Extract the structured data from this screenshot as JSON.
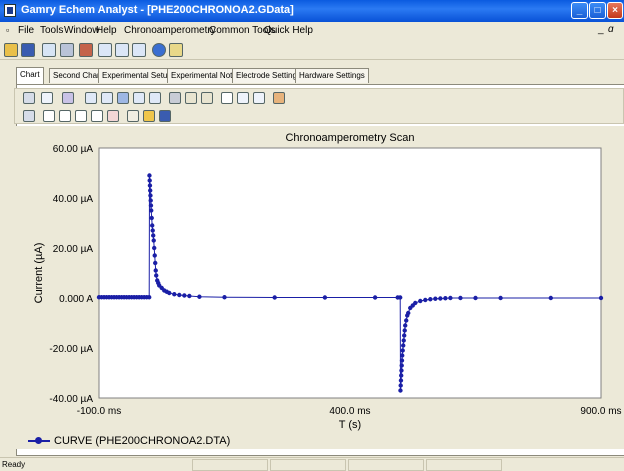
{
  "window": {
    "title": "Gamry Echem Analyst - [PHE200CHRONOA2.GData]"
  },
  "menu": {
    "items": [
      "File",
      "Tools",
      "Window",
      "Help",
      "Chronoamperometry",
      "Common Tools",
      "Quick Help"
    ]
  },
  "tabs": [
    "Chart",
    "Second Chart",
    "Experimental Setup",
    "Experimental Notes",
    "Electrode Settings",
    "Hardware Settings"
  ],
  "active_tab": "Chart",
  "legend": {
    "curve_label": "CURVE (PHE200CHRONOA2.DTA)"
  },
  "status": {
    "text": "Ready"
  },
  "colors": {
    "series": "#1a1fa6",
    "titlebar": "#0a5be0"
  },
  "chart_data": {
    "type": "scatter",
    "title": "Chronoamperometry Scan",
    "xlabel": "T (s)",
    "ylabel": "Current (µA)",
    "xlim": [
      -100,
      900
    ],
    "ylim": [
      -40,
      60
    ],
    "x_ticks": [
      -100,
      400,
      900
    ],
    "x_tick_labels": [
      "-100.0 ms",
      "400.0 ms",
      "900.0 ms"
    ],
    "y_ticks": [
      60,
      40,
      20,
      0,
      -20,
      -40
    ],
    "y_tick_labels": [
      "60.00 µA",
      "40.00 µA",
      "20.00 µA",
      "0.000 A",
      "-20.00 µA",
      "-40.00 µA"
    ],
    "grid": false,
    "legend_position": "bottom-left",
    "series": [
      {
        "name": "CURVE (PHE200CHRONOA2.DTA)",
        "x": [
          -100,
          -95,
          -90,
          -85,
          -80,
          -75,
          -70,
          -65,
          -60,
          -55,
          -50,
          -45,
          -40,
          -35,
          -30,
          -25,
          -20,
          -15,
          -10,
          -5,
          0,
          0.5,
          1,
          1.5,
          2,
          2.5,
          3,
          3.5,
          4,
          5,
          6,
          7,
          8,
          9,
          10,
          11,
          12,
          13,
          14,
          16,
          18,
          20,
          25,
          30,
          35,
          40,
          50,
          60,
          70,
          80,
          100,
          150,
          250,
          350,
          450,
          495,
          500,
          500.5,
          501,
          501.5,
          502,
          502.5,
          503,
          503.5,
          504,
          505,
          506,
          507,
          508,
          509,
          510,
          512,
          514,
          516,
          520,
          525,
          530,
          540,
          550,
          560,
          570,
          580,
          590,
          600,
          620,
          650,
          700,
          800,
          900
        ],
        "y": [
          0.3,
          0.3,
          0.3,
          0.3,
          0.3,
          0.3,
          0.3,
          0.3,
          0.3,
          0.3,
          0.3,
          0.3,
          0.3,
          0.3,
          0.3,
          0.3,
          0.3,
          0.3,
          0.3,
          0.3,
          0.3,
          49,
          47,
          45,
          43,
          41,
          39,
          37,
          35,
          32,
          29,
          27,
          25,
          23,
          20,
          17,
          14,
          11,
          9,
          7,
          6,
          5,
          4,
          3,
          2.5,
          2,
          1.5,
          1.2,
          1,
          0.8,
          0.5,
          0.3,
          0.2,
          0.2,
          0.2,
          0.2,
          0.2,
          -37,
          -35,
          -33,
          -31,
          -29,
          -27,
          -25,
          -23,
          -21,
          -19,
          -17,
          -15,
          -13,
          -11,
          -9,
          -7,
          -6,
          -4,
          -3,
          -2,
          -1.2,
          -0.8,
          -0.5,
          -0.3,
          -0.2,
          -0.1,
          0,
          0,
          0,
          0,
          0,
          0
        ]
      }
    ]
  }
}
